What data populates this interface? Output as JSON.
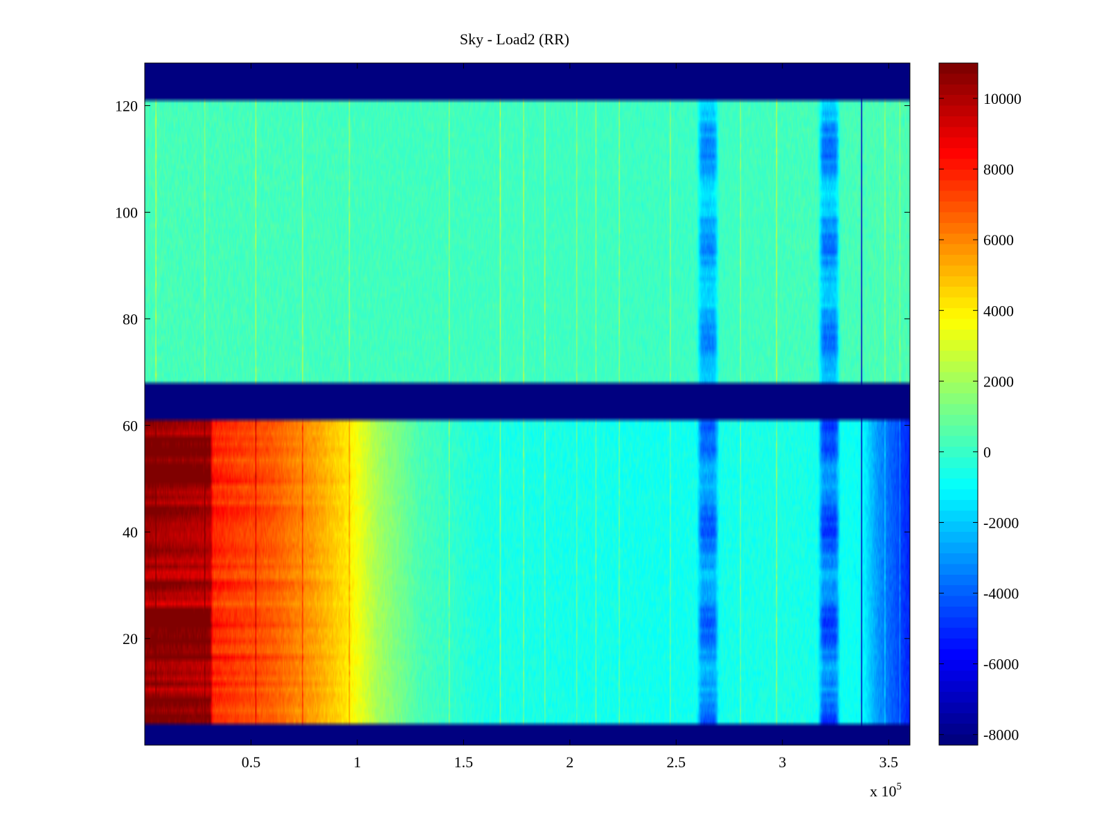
{
  "chart_data": {
    "type": "heatmap",
    "title": "Sky - Load2 (RR)",
    "xlabel": "",
    "ylabel": "",
    "x_range": [
      0,
      360000
    ],
    "y_range": [
      0,
      128
    ],
    "x_ticks": [
      {
        "value": 50000,
        "label": "0.5"
      },
      {
        "value": 100000,
        "label": "1"
      },
      {
        "value": 150000,
        "label": "1.5"
      },
      {
        "value": 200000,
        "label": "2"
      },
      {
        "value": 250000,
        "label": "2.5"
      },
      {
        "value": 300000,
        "label": "3"
      },
      {
        "value": 350000,
        "label": "3.5"
      }
    ],
    "x_exponent_label": {
      "base": "x 10",
      "exp": "5"
    },
    "y_ticks": [
      {
        "value": 20,
        "label": "20"
      },
      {
        "value": 40,
        "label": "40"
      },
      {
        "value": 60,
        "label": "60"
      },
      {
        "value": 80,
        "label": "80"
      },
      {
        "value": 100,
        "label": "100"
      },
      {
        "value": 120,
        "label": "120"
      }
    ],
    "colorbar": {
      "colormap": "jet",
      "range": [
        -8300,
        11000
      ],
      "ticks": [
        {
          "value": 10000,
          "label": "10000"
        },
        {
          "value": 8000,
          "label": "8000"
        },
        {
          "value": 6000,
          "label": "6000"
        },
        {
          "value": 4000,
          "label": "4000"
        },
        {
          "value": 2000,
          "label": "2000"
        },
        {
          "value": 0,
          "label": "0"
        },
        {
          "value": -2000,
          "label": "-2000"
        },
        {
          "value": -4000,
          "label": "-4000"
        },
        {
          "value": -6000,
          "label": "-6000"
        },
        {
          "value": -8000,
          "label": "-8000"
        }
      ]
    },
    "blank_row_bands": [
      [
        0,
        4
      ],
      [
        61,
        68
      ],
      [
        121,
        128
      ]
    ],
    "blank_value": -8300,
    "regions": [
      {
        "rows": [
          68,
          121
        ],
        "description_value": 0,
        "x_profile": [
          [
            0,
            300
          ],
          [
            100000,
            200
          ],
          [
            200000,
            150
          ],
          [
            260000,
            100
          ],
          [
            360000,
            400
          ]
        ]
      },
      {
        "rows": [
          4,
          61
        ],
        "x_profile": [
          [
            0,
            10500
          ],
          [
            31000,
            10000
          ],
          [
            32000,
            7800
          ],
          [
            60000,
            6800
          ],
          [
            80000,
            5500
          ],
          [
            95000,
            4200
          ],
          [
            110000,
            2000
          ],
          [
            130000,
            300
          ],
          [
            160000,
            -500
          ],
          [
            250000,
            -700
          ],
          [
            300000,
            -500
          ],
          [
            337000,
            -800
          ],
          [
            345000,
            -3000
          ],
          [
            360000,
            -5200
          ]
        ]
      }
    ],
    "dips": [
      {
        "x_center": 265000,
        "half_width": 4500,
        "depth": -3400
      },
      {
        "x_center": 322000,
        "half_width": 4500,
        "depth": -4000
      }
    ],
    "streaks": [
      5000,
      28000,
      52000,
      74000,
      96000,
      143000,
      167000,
      178000,
      188000,
      203000,
      212000,
      223000,
      247000,
      280000,
      297000,
      348000,
      355000
    ],
    "dark_line_x": 337000
  }
}
